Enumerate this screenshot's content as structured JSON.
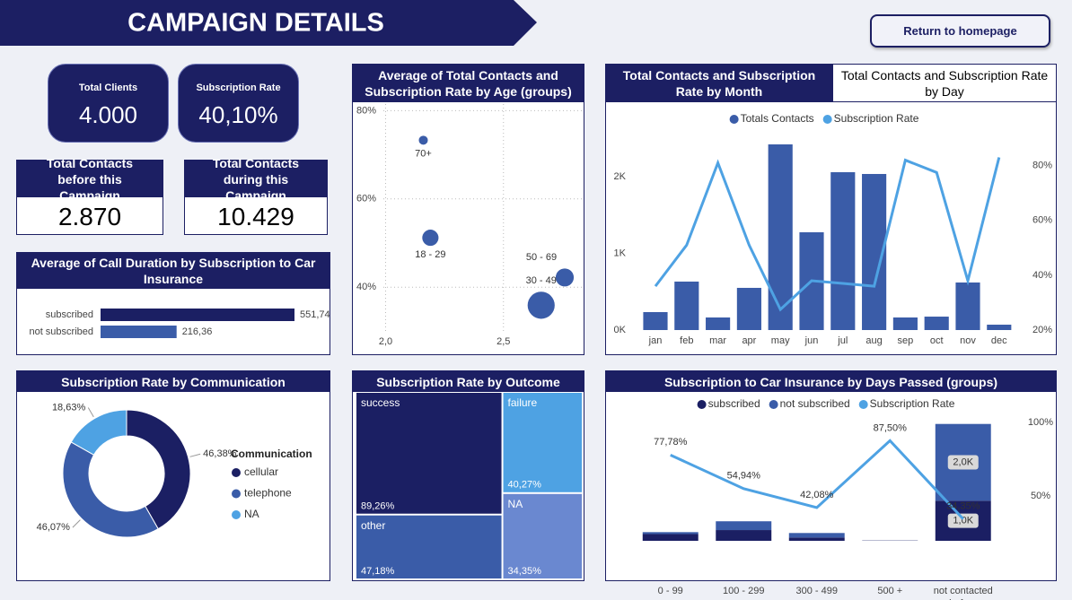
{
  "header": {
    "title": "CAMPAIGN DETAILS",
    "button": "Return to homepage"
  },
  "kpis": [
    {
      "label": "Total Clients",
      "value": "4.000"
    },
    {
      "label": "Subscription Rate",
      "value": "40,10%"
    },
    {
      "label": "Total Contacts before this Campaign",
      "value": "2.870"
    },
    {
      "label": "Total Contacts during this Campaign",
      "value": "10.429"
    }
  ],
  "chart_data": [
    {
      "type": "bar",
      "horizontal": true,
      "title": "Average of Call Duration by Subscription to Car Insurance",
      "categories": [
        "subscribed",
        "not subscribed"
      ],
      "values": [
        551.74,
        216.36
      ],
      "value_labels": [
        "551,74",
        "216,36"
      ],
      "colors": [
        "#1b1f63",
        "#3a5ca8"
      ]
    },
    {
      "type": "scatter",
      "title": "Average of Total Contacts and Subscription Rate by Age (groups)",
      "categories": [
        "70+",
        "18 - 29",
        "50 - 69",
        "30 - 49"
      ],
      "x": [
        2.16,
        2.19,
        2.76,
        2.66
      ],
      "values": [
        73.3,
        51.2,
        42.2,
        35.9
      ],
      "sizes": [
        232,
        752,
        928,
        2088
      ],
      "color": "#3a5ca8",
      "xlim": [
        1.88,
        2.84
      ],
      "ylim": [
        25,
        81.5
      ],
      "xticks": [
        {
          "value": 2,
          "label": "2,0"
        },
        {
          "value": 2.5,
          "label": "2,5"
        }
      ],
      "yticks": [
        {
          "value": 40,
          "label": "40%"
        },
        {
          "value": 60,
          "label": "60%"
        },
        {
          "value": 80,
          "label": "80%"
        }
      ],
      "grid": true
    },
    {
      "type": "combo",
      "tabs": [
        "Total Contacts and Subscription Rate by Month",
        "Total Contacts and Subscription Rate by Day"
      ],
      "categories": [
        "jan",
        "feb",
        "mar",
        "apr",
        "may",
        "jun",
        "jul",
        "aug",
        "sep",
        "oct",
        "nov",
        "dec"
      ],
      "series": [
        {
          "name": "Totals Contacts",
          "color": "#3a5ca8",
          "values": [
            234,
            632,
            164,
            550,
            2421,
            1275,
            2058,
            2035,
            164,
            175,
            620,
            70
          ]
        },
        {
          "name": "Subscription Rate",
          "color": "#4ea2e3",
          "type": "line",
          "axis": "y2",
          "values": [
            36,
            51,
            81,
            51,
            27.5,
            38,
            37,
            36,
            82,
            77.5,
            38,
            83
          ]
        }
      ],
      "ylim": [
        0,
        2830
      ],
      "yticks": [
        {
          "value": 0,
          "label": "0K"
        },
        {
          "value": 1000,
          "label": "1K"
        },
        {
          "value": 2000,
          "label": "2K"
        }
      ],
      "y2lim": [
        20,
        99.2
      ],
      "y2ticks": [
        {
          "value": 20,
          "label": "20%"
        },
        {
          "value": 40,
          "label": "40%"
        },
        {
          "value": 60,
          "label": "60%"
        },
        {
          "value": 80,
          "label": "80%"
        }
      ]
    },
    {
      "type": "donut",
      "title": "Subscription Rate by Communication",
      "legend_title": "Communication",
      "categories": [
        "cellular",
        "telephone",
        "NA"
      ],
      "values": [
        46.38,
        46.07,
        18.63
      ],
      "value_labels": [
        "46,38%",
        "46,07%",
        "18,63%"
      ],
      "colors": [
        "#1b1f63",
        "#3a5ca8",
        "#4ea2e3"
      ]
    },
    {
      "type": "treemap",
      "title": "Subscription Rate by Outcome",
      "categories": [
        "success",
        "other",
        "failure",
        "NA"
      ],
      "values": [
        89.26,
        47.18,
        40.27,
        34.35
      ],
      "value_labels": [
        "89,26%",
        "47,18%",
        "40,27%",
        "34,35%"
      ],
      "colors": [
        "#1b1f63",
        "#3a5ca8",
        "#4ea2e3",
        "#6a88d0"
      ]
    },
    {
      "type": "combo",
      "stacked": true,
      "title": "Subscription to Car Insurance by Days Passed (groups)",
      "categories": [
        "0 - 99",
        "100 - 299",
        "300 - 499",
        "500 +",
        "not contacted before"
      ],
      "series": [
        {
          "name": "subscribed",
          "color": "#1b1f63",
          "values": [
            175,
            278,
            85,
            7,
            1040
          ],
          "value_labels": [
            null,
            null,
            null,
            null,
            "1,0K"
          ]
        },
        {
          "name": "not subscribed",
          "color": "#3a5ca8",
          "values": [
            50,
            228,
            117,
            1,
            1988
          ],
          "value_labels": [
            null,
            null,
            null,
            null,
            "2,0K"
          ]
        },
        {
          "name": "Subscription Rate",
          "color": "#4ea2e3",
          "type": "line",
          "axis": "y2",
          "values": [
            77.78,
            54.94,
            42.08,
            87.5,
            34.35
          ],
          "value_labels": [
            "77,78%",
            "54,94%",
            "42,08%",
            "87,50%",
            "34,35%"
          ]
        }
      ],
      "ylim": [
        0,
        3300
      ],
      "y2lim": [
        19.5,
        106
      ],
      "y2ticks": [
        {
          "value": 50,
          "label": "50%"
        },
        {
          "value": 100,
          "label": "100%"
        }
      ]
    }
  ]
}
